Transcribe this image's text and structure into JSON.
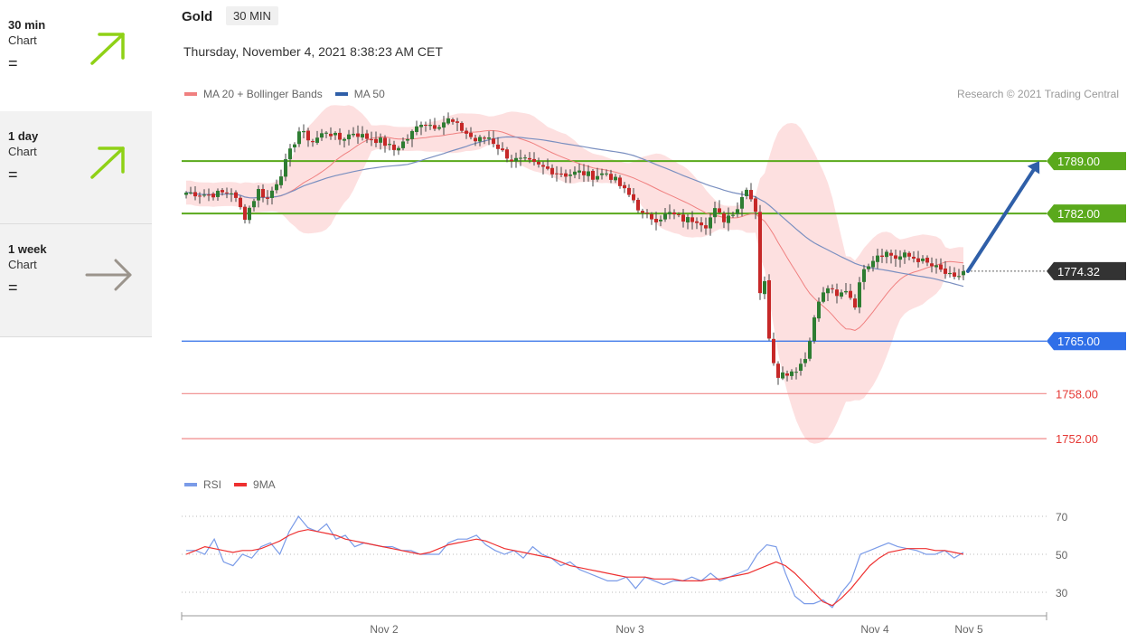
{
  "sidebar": {
    "items": [
      {
        "name": "30 min",
        "sub": "Chart",
        "status": "=",
        "arrow": "up",
        "color": "#8fd116",
        "selected": true
      },
      {
        "name": "1 day",
        "sub": "Chart",
        "status": "=",
        "arrow": "up",
        "color": "#8fd116",
        "selected": false
      },
      {
        "name": "1 week",
        "sub": "Chart",
        "status": "=",
        "arrow": "right",
        "color": "#9b948c",
        "selected": false
      }
    ]
  },
  "header": {
    "title": "Gold",
    "timeframe": "30 MIN",
    "datetime": "Thursday, November 4, 2021 8:38:23 AM CET",
    "legend_ma20": "MA 20 + Bollinger Bands",
    "legend_ma50": "MA 50",
    "copyright": "Research © 2021 Trading Central"
  },
  "rsi_legend": {
    "rsi": "RSI",
    "ma": "9MA"
  },
  "colors": {
    "ma20": "#f08080",
    "ma50": "#7a8fc0",
    "band": "#fddada",
    "up_candle": "#2e7d32",
    "down_candle": "#c62828",
    "resistance": "#5aa91c",
    "current": "#333333",
    "support1": "#2f6fe8",
    "support2": "#f08a8a",
    "forecast_arrow": "#2f5fa8",
    "rsi": "#7a9be8",
    "rsi_ma": "#ee3030"
  },
  "chart_data": {
    "type": "candlestick",
    "instrument": "Gold",
    "timeframe": "30 MIN",
    "x_ticks": [
      "Nov 2",
      "Nov 3",
      "Nov 4",
      "Nov 5"
    ],
    "ylim": [
      1749,
      1796
    ],
    "levels": [
      {
        "label": "1789.00",
        "value": 1789.0,
        "kind": "resistance"
      },
      {
        "label": "1782.00",
        "value": 1782.0,
        "kind": "resistance"
      },
      {
        "label": "1774.32",
        "value": 1774.32,
        "kind": "current"
      },
      {
        "label": "1765.00",
        "value": 1765.0,
        "kind": "support"
      },
      {
        "label": "1758.00",
        "value": 1758.0,
        "kind": "support"
      },
      {
        "label": "1752.00",
        "value": 1752.0,
        "kind": "support"
      }
    ],
    "price_path": [
      [
        0,
        1784.8
      ],
      [
        5,
        1784.5
      ],
      [
        10,
        1784.9
      ],
      [
        13,
        1781.6
      ],
      [
        16,
        1785.1
      ],
      [
        18,
        1783.9
      ],
      [
        21,
        1787.4
      ],
      [
        25,
        1793.0
      ],
      [
        28,
        1791.6
      ],
      [
        31,
        1793.0
      ],
      [
        34,
        1791.9
      ],
      [
        37,
        1792.8
      ],
      [
        40,
        1792.1
      ],
      [
        43,
        1791.7
      ],
      [
        46,
        1790.5
      ],
      [
        49,
        1792.0
      ],
      [
        52,
        1794.2
      ],
      [
        55,
        1793.7
      ],
      [
        58,
        1794.5
      ],
      [
        61,
        1793.2
      ],
      [
        64,
        1791.7
      ],
      [
        67,
        1792.2
      ],
      [
        70,
        1790.2
      ],
      [
        72,
        1789.2
      ],
      [
        75,
        1789.0
      ],
      [
        78,
        1788.3
      ],
      [
        81,
        1787.7
      ],
      [
        84,
        1787.2
      ],
      [
        87,
        1787.5
      ],
      [
        90,
        1787.0
      ],
      [
        93,
        1787.4
      ],
      [
        95,
        1786.4
      ],
      [
        97,
        1785.0
      ],
      [
        99,
        1783.8
      ],
      [
        101,
        1781.8
      ],
      [
        104,
        1781.3
      ],
      [
        107,
        1782.0
      ],
      [
        110,
        1781.2
      ],
      [
        113,
        1781.2
      ],
      [
        115,
        1780.5
      ],
      [
        117,
        1782.4
      ],
      [
        119,
        1781.2
      ],
      [
        122,
        1782.8
      ],
      [
        124,
        1785.6
      ],
      [
        126,
        1782.5
      ],
      [
        127,
        1771.6
      ],
      [
        128,
        1772.7
      ],
      [
        129,
        1765.7
      ],
      [
        130,
        1762.4
      ],
      [
        131,
        1760.6
      ],
      [
        133,
        1760.8
      ],
      [
        135,
        1761.3
      ],
      [
        137,
        1762.7
      ],
      [
        138,
        1765.5
      ],
      [
        140,
        1770.3
      ],
      [
        142,
        1772.2
      ],
      [
        144,
        1770.8
      ],
      [
        146,
        1771.9
      ],
      [
        148,
        1769.9
      ],
      [
        150,
        1775.0
      ],
      [
        151,
        1775.4
      ],
      [
        153,
        1776.6
      ],
      [
        155,
        1776.8
      ],
      [
        157,
        1776.1
      ],
      [
        159,
        1776.4
      ],
      [
        162,
        1775.9
      ],
      [
        164,
        1775.3
      ],
      [
        166,
        1774.7
      ],
      [
        168,
        1774.0
      ],
      [
        170,
        1773.2
      ],
      [
        172,
        1774.3
      ]
    ],
    "forecast": {
      "from": 1774.32,
      "to": 1789.0
    },
    "rsi": {
      "ylim": [
        20,
        80
      ],
      "ticks": [
        70,
        50,
        30
      ],
      "series": [
        {
          "name": "RSI",
          "values": [
            52,
            52,
            50,
            58,
            46,
            44,
            50,
            48,
            54,
            56,
            50,
            62,
            70,
            64,
            62,
            66,
            58,
            60,
            54,
            56,
            55,
            54,
            54,
            52,
            52,
            50,
            50,
            50,
            56,
            58,
            58,
            60,
            55,
            52,
            50,
            52,
            48,
            54,
            50,
            48,
            44,
            46,
            42,
            40,
            38,
            36,
            36,
            38,
            32,
            38,
            36,
            34,
            36,
            36,
            38,
            36,
            40,
            36,
            38,
            40,
            42,
            50,
            55,
            54,
            40,
            28,
            24,
            24,
            26,
            22,
            30,
            36,
            50,
            52,
            54,
            56,
            54,
            53,
            52,
            50,
            50,
            52,
            48,
            51
          ]
        },
        {
          "name": "9MA",
          "values": [
            50,
            52,
            54,
            53,
            52,
            51,
            52,
            52,
            53,
            55,
            57,
            60,
            62,
            63,
            62,
            61,
            60,
            58,
            57,
            56,
            55,
            54,
            53,
            52,
            51,
            50,
            51,
            53,
            55,
            56,
            57,
            58,
            57,
            55,
            53,
            52,
            51,
            50,
            49,
            48,
            46,
            44,
            43,
            42,
            41,
            40,
            39,
            38,
            38,
            38,
            37,
            37,
            37,
            36,
            36,
            36,
            37,
            37,
            38,
            39,
            40,
            42,
            44,
            46,
            44,
            40,
            35,
            30,
            25,
            23,
            27,
            32,
            38,
            44,
            48,
            51,
            52,
            53,
            53,
            53,
            52,
            52,
            51,
            50
          ]
        }
      ]
    }
  }
}
